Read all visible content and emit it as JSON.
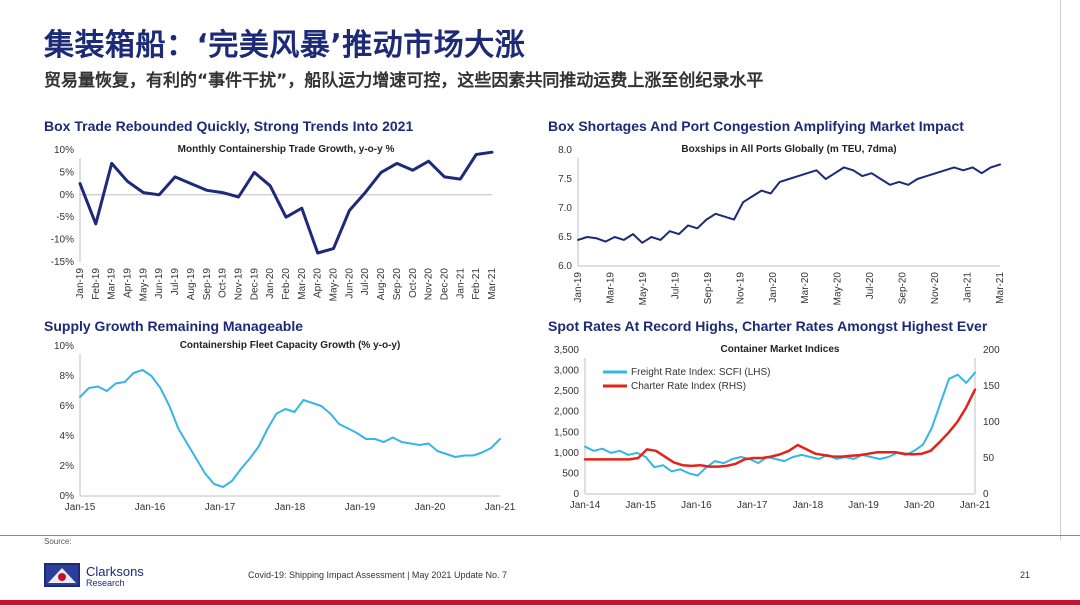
{
  "header": {
    "title": "集装箱船：‘完美风暴’推动市场大涨",
    "subtitle": "贸易量恢复，有利的“事件干扰”，船队运力增速可控，这些因素共同推动运费上涨至创纪录水平"
  },
  "panels": {
    "p1_title": "Box Trade Rebounded Quickly, Strong Trends Into 2021",
    "p2_title": "Box Shortages And Port Congestion Amplifying Market Impact",
    "p3_title": "Supply Growth Remaining Manageable",
    "p4_title": "Spot Rates At Record Highs, Charter Rates Amongst Highest Ever"
  },
  "footer": {
    "source": "Source:",
    "logo_line1": "Clarksons",
    "logo_line2": "Research",
    "text": "Covid-19: Shipping Impact Assessment | May 2021 Update No. 7",
    "page": "21"
  },
  "colors": {
    "navy": "#1c2a78",
    "cyan": "#35b6e6",
    "red": "#e2231a"
  },
  "chart_data": [
    {
      "type": "line",
      "title": "Monthly Containership Trade Growth, y-o-y %",
      "x": [
        "Jan-19",
        "Feb-19",
        "Mar-19",
        "Apr-19",
        "May-19",
        "Jun-19",
        "Jul-19",
        "Aug-19",
        "Sep-19",
        "Oct-19",
        "Nov-19",
        "Dec-19",
        "Jan-20",
        "Feb-20",
        "Mar-20",
        "Apr-20",
        "May-20",
        "Jun-20",
        "Jul-20",
        "Aug-20",
        "Sep-20",
        "Oct-20",
        "Nov-20",
        "Dec-20",
        "Jan-21",
        "Feb-21",
        "Mar-21"
      ],
      "series": [
        {
          "color": "#1c2a78",
          "values": [
            2.5,
            -6.5,
            7.0,
            3.0,
            0.5,
            0.0,
            4.0,
            2.5,
            1.0,
            0.5,
            -0.5,
            5.0,
            2.0,
            -5.0,
            -3.0,
            -13.0,
            -12.0,
            -3.5,
            0.5,
            5.0,
            7.0,
            5.5,
            7.5,
            4.0,
            3.5,
            9.0,
            9.5
          ]
        }
      ],
      "yticks": [
        "10%",
        "5%",
        "0%",
        "-5%",
        "-10%",
        "-15%"
      ],
      "ylim": [
        -15,
        10
      ]
    },
    {
      "type": "line",
      "title": "Boxships in All Ports Globally (m TEU, 7dma)",
      "xticks": [
        "Jan-19",
        "Mar-19",
        "May-19",
        "Jul-19",
        "Sep-19",
        "Nov-19",
        "Jan-20",
        "Mar-20",
        "May-20",
        "Jul-20",
        "Sep-20",
        "Nov-20",
        "Jan-21",
        "Mar-21"
      ],
      "series": [
        {
          "color": "#1c2a78",
          "values": [
            6.45,
            6.5,
            6.48,
            6.42,
            6.5,
            6.45,
            6.55,
            6.4,
            6.5,
            6.45,
            6.6,
            6.55,
            6.7,
            6.65,
            6.8,
            6.9,
            6.85,
            6.8,
            7.1,
            7.2,
            7.3,
            7.25,
            7.45,
            7.5,
            7.55,
            7.6,
            7.65,
            7.5,
            7.6,
            7.7,
            7.65,
            7.55,
            7.6,
            7.5,
            7.4,
            7.45,
            7.4,
            7.5,
            7.55,
            7.6,
            7.65,
            7.7,
            7.65,
            7.7,
            7.6,
            7.7,
            7.75
          ]
        }
      ],
      "yticks": [
        "8.0",
        "7.5",
        "7.0",
        "6.5",
        "6.0"
      ],
      "ylim": [
        6.0,
        8.0
      ]
    },
    {
      "type": "line",
      "title": "Containership Fleet Capacity Growth (% y-o-y)",
      "xticks": [
        "Jan-15",
        "Jan-16",
        "Jan-17",
        "Jan-18",
        "Jan-19",
        "Jan-20",
        "Jan-21"
      ],
      "series": [
        {
          "color": "#35b6e6",
          "values": [
            6.6,
            7.2,
            7.3,
            7.0,
            7.5,
            7.6,
            8.2,
            8.4,
            8.0,
            7.2,
            6.0,
            4.5,
            3.5,
            2.5,
            1.5,
            0.8,
            0.6,
            1.0,
            1.8,
            2.5,
            3.3,
            4.5,
            5.5,
            5.8,
            5.6,
            6.4,
            6.2,
            6.0,
            5.5,
            4.8,
            4.5,
            4.2,
            3.8,
            3.8,
            3.6,
            3.9,
            3.6,
            3.5,
            3.4,
            3.5,
            3.0,
            2.8,
            2.6,
            2.7,
            2.7,
            2.9,
            3.2,
            3.8
          ]
        }
      ],
      "yticks": [
        "10%",
        "8%",
        "6%",
        "4%",
        "2%",
        "0%"
      ],
      "ylim": [
        0,
        10
      ]
    },
    {
      "type": "line",
      "title": "Container Market Indices",
      "xticks": [
        "Jan-14",
        "Jan-15",
        "Jan-16",
        "Jan-17",
        "Jan-18",
        "Jan-19",
        "Jan-20",
        "Jan-21"
      ],
      "yticks_left": [
        "3,500",
        "3,000",
        "2,500",
        "2,000",
        "1,500",
        "1,000",
        "500",
        "0"
      ],
      "yticks_right": [
        "200",
        "150",
        "100",
        "50",
        "0"
      ],
      "ylim_left": [
        0,
        3500
      ],
      "ylim_right": [
        0,
        200
      ],
      "series": [
        {
          "name": "Freight Rate Index: SCFI (LHS)",
          "axis": "left",
          "color": "#35b6e6",
          "values": [
            1150,
            1050,
            1100,
            1000,
            1050,
            950,
            1000,
            900,
            650,
            700,
            550,
            600,
            500,
            450,
            650,
            800,
            750,
            850,
            900,
            850,
            750,
            900,
            850,
            800,
            900,
            950,
            900,
            850,
            950,
            850,
            900,
            850,
            950,
            900,
            850,
            900,
            1000,
            950,
            1050,
            1200,
            1600,
            2200,
            2800,
            2900,
            2700,
            2950
          ]
        },
        {
          "name": "Charter Rate Index (RHS)",
          "axis": "right",
          "color": "#e2231a",
          "values": [
            48,
            48,
            48,
            48,
            48,
            48,
            50,
            62,
            60,
            52,
            44,
            40,
            39,
            40,
            38,
            38,
            39,
            42,
            48,
            50,
            50,
            52,
            55,
            60,
            68,
            62,
            56,
            54,
            52,
            52,
            53,
            54,
            56,
            58,
            58,
            58,
            56,
            55,
            56,
            60,
            72,
            85,
            100,
            120,
            145
          ]
        }
      ],
      "legend": "upper-left"
    }
  ]
}
